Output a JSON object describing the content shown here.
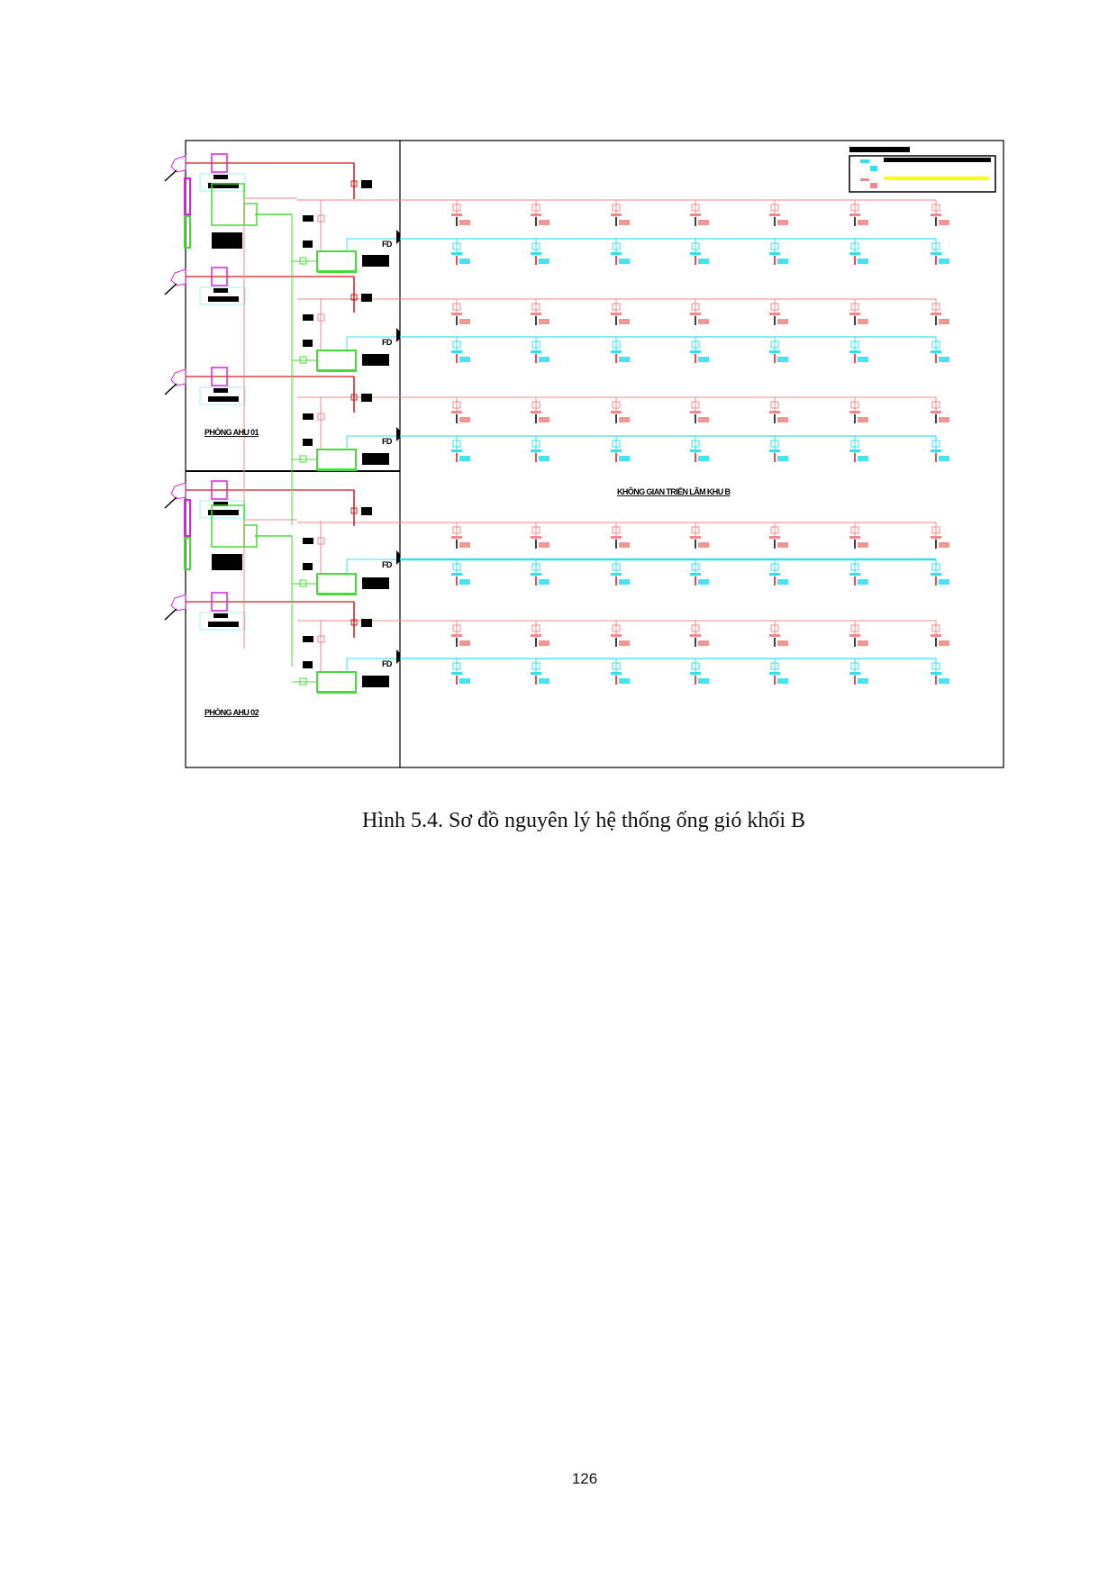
{
  "figure": {
    "caption": "Hình 5.4. Sơ đồ nguyên lý hệ thống ống gió khối B",
    "room_labels": [
      "PHÒNG AHU 01",
      "PHÒNG AHU 02"
    ],
    "space_label": "KHÔNG GIAN TRIỂN LÃM KHU B",
    "fire_damper_label": "FD",
    "colors": {
      "supply_duct": "#33e0f0",
      "return_duct": "#f08a8a",
      "exhaust_duct": "#d01818",
      "fresh_air_duct": "#44dd33",
      "exhaust_hood": "#dd22dd",
      "legend_line": "#ffff00"
    }
  },
  "page": {
    "number": "126"
  }
}
